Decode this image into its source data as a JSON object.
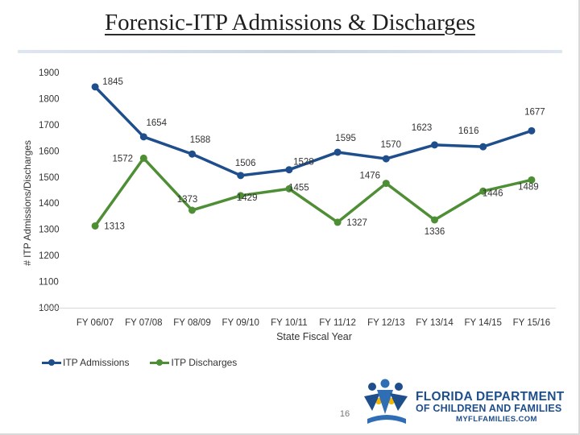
{
  "slide": {
    "title": "Forensic-ITP Admissions & Discharges",
    "page_number": "16"
  },
  "logo": {
    "line1": "FLORIDA DEPARTMENT",
    "line2": "OF CHILDREN AND FAMILIES",
    "line3": "MYFLFAMILIES.COM"
  },
  "legend": {
    "admissions_label": "ITP Admissions",
    "discharges_label": "ITP Discharges"
  },
  "colors": {
    "admissions": "#1f4e8c",
    "discharges": "#4e8f35",
    "grid": "#d9d9d9"
  },
  "chart_data": {
    "type": "line",
    "title": "Forensic-ITP Admissions & Discharges",
    "xlabel": "State Fiscal Year",
    "ylabel": "# ITP Admissions/Discharges",
    "categories": [
      "FY 06/07",
      "FY 07/08",
      "FY 08/09",
      "FY 09/10",
      "FY 10/11",
      "FY 11/12",
      "FY 12/13",
      "FY 13/14",
      "FY 14/15",
      "FY 15/16"
    ],
    "series": [
      {
        "name": "ITP Admissions",
        "values": [
          1845,
          1654,
          1588,
          1506,
          1528,
          1595,
          1570,
          1623,
          1616,
          1677
        ]
      },
      {
        "name": "ITP Discharges",
        "values": [
          1313,
          1572,
          1373,
          1429,
          1455,
          1327,
          1476,
          1336,
          1446,
          1489
        ]
      }
    ],
    "ylim": [
      1000,
      1900
    ],
    "yticks": [
      "1000",
      "1100",
      "1200",
      "1300",
      "1400",
      "1500",
      "1600",
      "1700",
      "1800",
      "1900"
    ],
    "grid": false,
    "legend_position": "bottom-left"
  }
}
